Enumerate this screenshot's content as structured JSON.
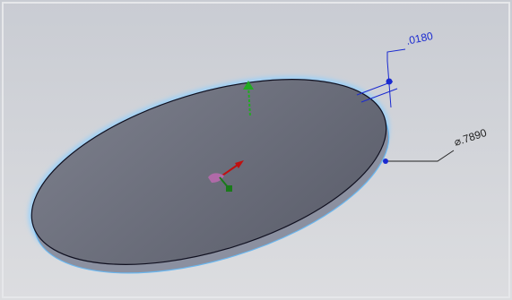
{
  "dimensions": [
    {
      "label": ".0180"
    },
    {
      "label": "⌀.7890"
    }
  ]
}
